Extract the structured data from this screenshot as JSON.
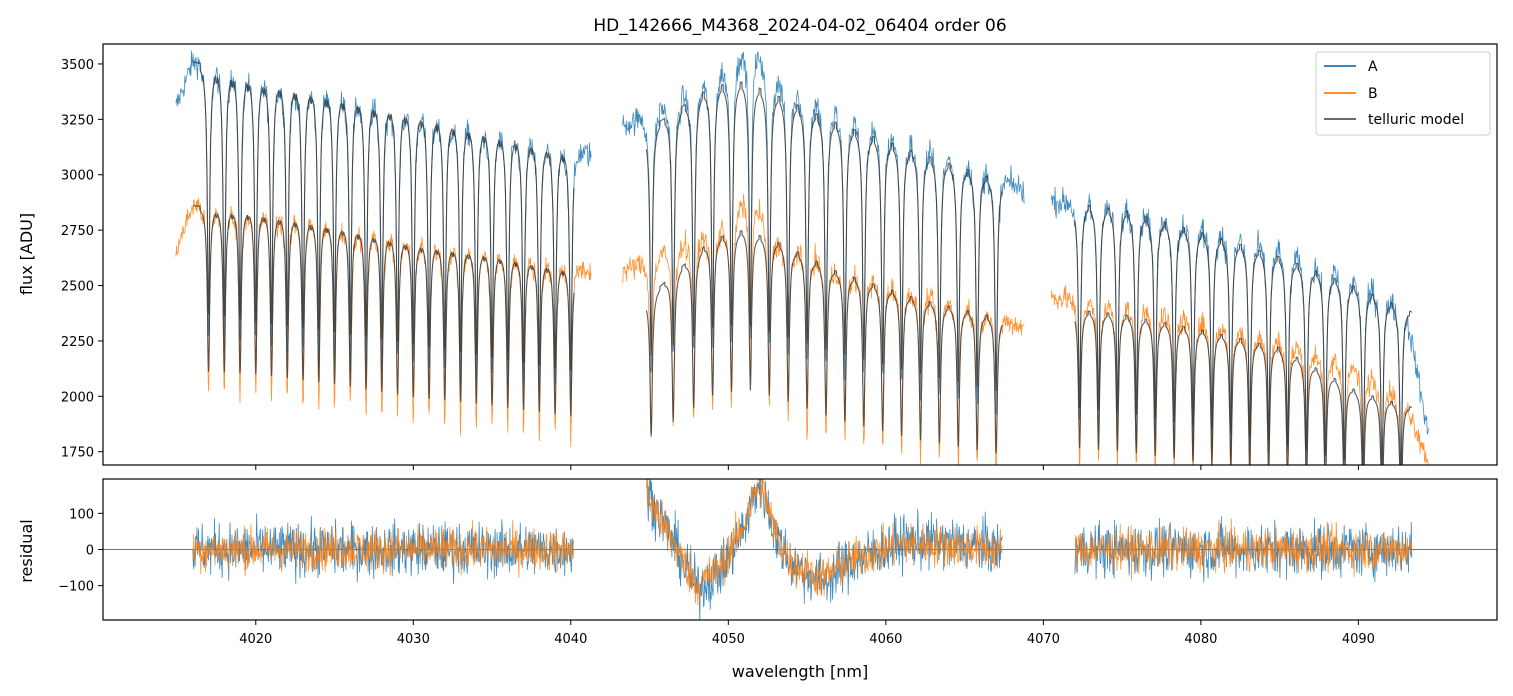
{
  "chart_data": [
    {
      "type": "line",
      "panel": "top",
      "title": "HD_142666_M4368_2024-04-02_06404  order 06",
      "xlabel": "",
      "ylabel": "flux [ADU]",
      "xlim": [
        4010.3,
        4098.8
      ],
      "ylim": [
        1690,
        3590
      ],
      "yticks": [
        1750,
        2000,
        2250,
        2500,
        2750,
        3000,
        3250,
        3500
      ],
      "ytick_labels": [
        "1750",
        "2000",
        "2250",
        "2500",
        "2750",
        "3000",
        "3250",
        "3500"
      ],
      "legend": {
        "position": "top-right",
        "entries": [
          {
            "label": "A",
            "color": "#1f77b4"
          },
          {
            "label": "B",
            "color": "#ff7f0e"
          },
          {
            "label": "telluric model",
            "color": "#555555"
          }
        ]
      },
      "series": [
        {
          "name": "A",
          "color": "#1f77b4",
          "segments": [
            {
              "x_range": [
                4014.9,
                4041.3
              ],
              "continuum": [
                [
                  4014.9,
                  3300
                ],
                [
                  4016,
                  3510
                ],
                [
                  4020,
                  3440
                ],
                [
                  4025,
                  3370
                ],
                [
                  4030,
                  3290
                ],
                [
                  4035,
                  3200
                ],
                [
                  4040,
                  3110
                ],
                [
                  4041.3,
                  3090
                ]
              ]
            },
            {
              "x_range": [
                4043.3,
                4068.8
              ],
              "continuum": [
                [
                  4043.3,
                  3220
                ],
                [
                  4046,
                  3300
                ],
                [
                  4049,
                  3420
                ],
                [
                  4051.5,
                  3590
                ],
                [
                  4053,
                  3420
                ],
                [
                  4057,
                  3260
                ],
                [
                  4062,
                  3120
                ],
                [
                  4066,
                  3020
                ],
                [
                  4068.8,
                  2930
                ]
              ]
            },
            {
              "x_range": [
                4070.5,
                4094.5
              ],
              "continuum": [
                [
                  4070.5,
                  2880
                ],
                [
                  4075,
                  2850
                ],
                [
                  4080,
                  2760
                ],
                [
                  4085,
                  2650
                ],
                [
                  4090,
                  2510
                ],
                [
                  4093,
                  2400
                ],
                [
                  4094.5,
                  1800
                ]
              ]
            }
          ],
          "telluric_lines_nm": [
            4017,
            4018,
            4019,
            4020,
            4021,
            4022,
            4023,
            4024,
            4025,
            4026,
            4027,
            4028,
            4029,
            4030,
            4031,
            4032,
            4033,
            4034,
            4035,
            4036,
            4037,
            4038,
            4039,
            4040,
            4045.1,
            4046.5,
            4047.8,
            4049.0,
            4050.2,
            4051.4,
            4052.6,
            4053.8,
            4055.0,
            4056.2,
            4057.4,
            4058.6,
            4059.8,
            4061.0,
            4062.2,
            4063.4,
            4064.6,
            4065.8,
            4067.0,
            4072.3,
            4073.5,
            4074.7,
            4075.9,
            4077.1,
            4078.3,
            4079.5,
            4080.7,
            4081.9,
            4083.1,
            4084.3,
            4085.5,
            4086.7,
            4087.9,
            4089.1,
            4090.3,
            4091.5,
            4092.7
          ]
        },
        {
          "name": "B",
          "color": "#ff7f0e",
          "segments": [
            {
              "x_range": [
                4014.9,
                4041.3
              ],
              "continuum": [
                [
                  4014.9,
                  2650
                ],
                [
                  4016,
                  2860
                ],
                [
                  4020,
                  2840
                ],
                [
                  4025,
                  2780
                ],
                [
                  4030,
                  2700
                ],
                [
                  4035,
                  2650
                ],
                [
                  4040,
                  2590
                ],
                [
                  4041.3,
                  2560
                ]
              ]
            },
            {
              "x_range": [
                4043.3,
                4068.8
              ],
              "continuum": [
                [
                  4043.3,
                  2560
                ],
                [
                  4047,
                  2680
                ],
                [
                  4050,
                  2760
                ],
                [
                  4051.3,
                  2920
                ],
                [
                  4053,
                  2700
                ],
                [
                  4057,
                  2560
                ],
                [
                  4062,
                  2460
                ],
                [
                  4066,
                  2380
                ],
                [
                  4068.8,
                  2310
                ]
              ]
            },
            {
              "x_range": [
                4070.5,
                4094.5
              ],
              "continuum": [
                [
                  4070.5,
                  2450
                ],
                [
                  4075,
                  2400
                ],
                [
                  4080,
                  2330
                ],
                [
                  4085,
                  2250
                ],
                [
                  4090,
                  2120
                ],
                [
                  4093,
                  1980
                ],
                [
                  4094.5,
                  1690
                ]
              ]
            }
          ]
        },
        {
          "name": "telluric model",
          "color": "#333333",
          "segments": [
            {
              "x_range": [
                4016,
                4040.2
              ],
              "continuum_A": [
                [
                  4016,
                  3510
                ],
                [
                  4020,
                  3440
                ],
                [
                  4025,
                  3370
                ],
                [
                  4030,
                  3290
                ],
                [
                  4035,
                  3200
                ],
                [
                  4040.2,
                  3110
                ]
              ],
              "continuum_B": [
                [
                  4016,
                  2860
                ],
                [
                  4020,
                  2840
                ],
                [
                  4025,
                  2780
                ],
                [
                  4030,
                  2700
                ],
                [
                  4035,
                  2650
                ],
                [
                  4040.2,
                  2580
                ]
              ]
            },
            {
              "x_range": [
                4044.8,
                4067.4
              ],
              "continuum_A": [
                [
                  4044.8,
                  3200
                ],
                [
                  4049,
                  3400
                ],
                [
                  4051,
                  3420
                ],
                [
                  4053,
                  3360
                ],
                [
                  4057,
                  3230
                ],
                [
                  4062,
                  3100
                ],
                [
                  4067.4,
                  2970
                ]
              ],
              "continuum_B": [
                [
                  4044.8,
                  2440
                ],
                [
                  4049,
                  2710
                ],
                [
                  4051,
                  2750
                ],
                [
                  4053,
                  2700
                ],
                [
                  4057,
                  2560
                ],
                [
                  4062,
                  2440
                ],
                [
                  4067.4,
                  2350
                ]
              ]
            },
            {
              "x_range": [
                4072,
                4093.4
              ],
              "continuum_A": [
                [
                  4072,
                  2870
                ],
                [
                  4075,
                  2840
                ],
                [
                  4080,
                  2740
                ],
                [
                  4085,
                  2630
                ],
                [
                  4090,
                  2490
                ],
                [
                  4093.4,
                  2380
                ]
              ],
              "continuum_B": [
                [
                  4072,
                  2390
                ],
                [
                  4075,
                  2370
                ],
                [
                  4080,
                  2300
                ],
                [
                  4085,
                  2220
                ],
                [
                  4090,
                  2020
                ],
                [
                  4093.4,
                  1950
                ]
              ]
            }
          ]
        }
      ]
    },
    {
      "type": "line",
      "panel": "bottom",
      "xlabel": "wavelength [nm]",
      "ylabel": "residual",
      "xlim": [
        4010.3,
        4098.8
      ],
      "ylim": [
        -195,
        195
      ],
      "xticks": [
        4020,
        4030,
        4040,
        4050,
        4060,
        4070,
        4080,
        4090
      ],
      "xtick_labels": [
        "4020",
        "4030",
        "4040",
        "4050",
        "4060",
        "4070",
        "4080",
        "4090"
      ],
      "yticks": [
        -100,
        0,
        100
      ],
      "ytick_labels": [
        "−100",
        "0",
        "100"
      ],
      "zero_line": 0,
      "series": [
        {
          "name": "A",
          "color": "#1f77b4",
          "segments": [
            [
              4016,
              4040.2
            ],
            [
              4044.8,
              4067.4
            ],
            [
              4072,
              4093.4
            ]
          ],
          "trend": [
            [
              4044.8,
              170
            ],
            [
              4046.5,
              20
            ],
            [
              4048,
              -110
            ],
            [
              4049.5,
              -60
            ],
            [
              4051,
              60
            ],
            [
              4052,
              195
            ],
            [
              4053,
              40
            ],
            [
              4054,
              -40
            ],
            [
              4056,
              -90
            ],
            [
              4058,
              -30
            ],
            [
              4061,
              20
            ],
            [
              4064,
              20
            ],
            [
              4067.4,
              0
            ]
          ],
          "scatter": 70
        },
        {
          "name": "B",
          "color": "#ff7f0e",
          "segments": [
            [
              4016,
              4040.2
            ],
            [
              4044.8,
              4067.4
            ],
            [
              4072,
              4093.4
            ]
          ],
          "trend": [
            [
              4044.8,
              150
            ],
            [
              4046.5,
              20
            ],
            [
              4048,
              -100
            ],
            [
              4049.5,
              -50
            ],
            [
              4051,
              70
            ],
            [
              4052,
              195
            ],
            [
              4053,
              40
            ],
            [
              4054,
              -40
            ],
            [
              4056,
              -80
            ],
            [
              4058,
              -25
            ],
            [
              4061,
              15
            ],
            [
              4064,
              10
            ],
            [
              4067.4,
              0
            ]
          ],
          "scatter": 55
        }
      ]
    }
  ]
}
